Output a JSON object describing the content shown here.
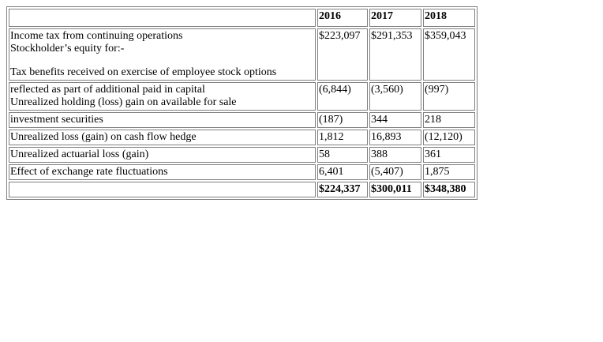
{
  "headers": [
    "2016",
    "2017",
    "2018"
  ],
  "rows": [
    {
      "labels": [
        "Income tax from continuing operations",
        "Stockholder’s equity for:-",
        "Tax benefits received on exercise of employee stock options"
      ],
      "values": [
        "$223,097",
        "$291,353",
        "$359,043"
      ]
    },
    {
      "labels": [
        "reflected as part of additional paid in capital",
        "Unrealized holding (loss) gain on available for sale"
      ],
      "values": [
        "(6,844)",
        "(3,560)",
        "(997)"
      ]
    },
    {
      "labels": [
        "investment securities"
      ],
      "values": [
        "(187)",
        "344",
        "218"
      ]
    },
    {
      "labels": [
        "Unrealized loss (gain) on cash flow hedge"
      ],
      "values": [
        "1,812",
        "16,893",
        "(12,120)"
      ]
    },
    {
      "labels": [
        "Unrealized actuarial loss (gain)"
      ],
      "values": [
        "58",
        "388",
        "361"
      ]
    },
    {
      "labels": [
        "Effect of exchange rate fluctuations"
      ],
      "values": [
        "6,401",
        "(5,407)",
        "1,875"
      ]
    }
  ],
  "totals": [
    "$224,337",
    "$300,011",
    "$348,380"
  ]
}
